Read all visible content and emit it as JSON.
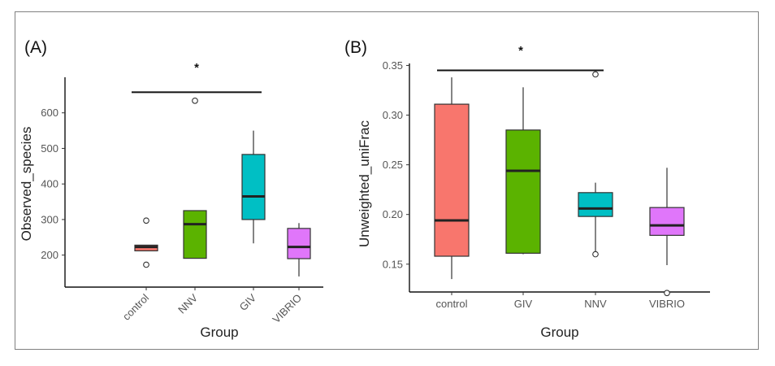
{
  "chart_data": [
    {
      "type": "boxplot",
      "panel_label": "(A)",
      "xlabel": "Group",
      "ylabel": "Observed_species",
      "ylim": [
        110,
        700
      ],
      "yticks": [
        200,
        300,
        400,
        500,
        600
      ],
      "ytick_labels": [
        "200",
        "300",
        "400",
        "500",
        "600"
      ],
      "categories": [
        "control",
        "NNV",
        "GIV",
        "VIBRIO"
      ],
      "xtick_rotated": true,
      "colors": [
        "#f8766d",
        "#5bb300",
        "#00bfc4",
        "#e076fa"
      ],
      "boxes": [
        {
          "name": "control",
          "q1": 212,
          "median": 223,
          "q3": 228,
          "whisker_low": 212,
          "whisker_high": 228,
          "outliers": [
            297,
            173
          ]
        },
        {
          "name": "NNV",
          "q1": 191,
          "median": 287,
          "q3": 325,
          "whisker_low": 190,
          "whisker_high": 325,
          "outliers": [
            634
          ]
        },
        {
          "name": "GIV",
          "q1": 300,
          "median": 365,
          "q3": 483,
          "whisker_low": 233,
          "whisker_high": 550,
          "outliers": []
        },
        {
          "name": "VIBRIO",
          "q1": 190,
          "median": 223,
          "q3": 275,
          "whisker_low": 140,
          "whisker_high": 290,
          "outliers": []
        }
      ],
      "significance": {
        "from": "control",
        "to": "GIV",
        "y": 658,
        "label": "*"
      }
    },
    {
      "type": "boxplot",
      "panel_label": "(B)",
      "xlabel": "Group",
      "ylabel": "Unweighted_uniFrac",
      "ylim": [
        0.122,
        0.352
      ],
      "yticks": [
        0.15,
        0.2,
        0.25,
        0.3,
        0.35
      ],
      "ytick_labels": [
        "0.15",
        "0.20",
        "0.25",
        "0.30",
        "0.35"
      ],
      "categories": [
        "control",
        "GIV",
        "NNV",
        "VIBRIO"
      ],
      "xtick_rotated": false,
      "colors": [
        "#f8766d",
        "#5bb300",
        "#00bfc4",
        "#e076fa"
      ],
      "boxes": [
        {
          "name": "control",
          "q1": 0.158,
          "median": 0.194,
          "q3": 0.311,
          "whisker_low": 0.135,
          "whisker_high": 0.338,
          "outliers": []
        },
        {
          "name": "GIV",
          "q1": 0.161,
          "median": 0.244,
          "q3": 0.285,
          "whisker_low": 0.16,
          "whisker_high": 0.328,
          "outliers": []
        },
        {
          "name": "NNV",
          "q1": 0.198,
          "median": 0.206,
          "q3": 0.222,
          "whisker_low": 0.161,
          "whisker_high": 0.232,
          "outliers": [
            0.16,
            0.341
          ]
        },
        {
          "name": "VIBRIO",
          "q1": 0.179,
          "median": 0.189,
          "q3": 0.207,
          "whisker_low": 0.149,
          "whisker_high": 0.247,
          "outliers": [
            0.121
          ]
        }
      ],
      "significance": {
        "from": "control",
        "to": "NNV",
        "y": 0.345,
        "label": "*"
      }
    }
  ]
}
